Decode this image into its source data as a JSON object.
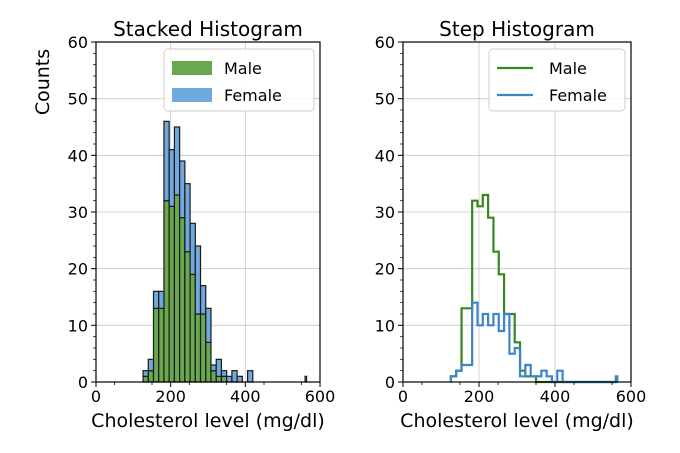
{
  "chart_data": [
    {
      "type": "bar",
      "stacked": true,
      "title": "Stacked Histogram",
      "xlabel": "Cholesterol level (mg/dl)",
      "ylabel": "Counts",
      "xlim": [
        0,
        600
      ],
      "ylim": [
        0,
        60
      ],
      "xticks": [
        0,
        200,
        400,
        600
      ],
      "yticks": [
        0,
        10,
        20,
        30,
        40,
        50,
        60
      ],
      "grid": true,
      "legend_position": "top-right",
      "bin_edges": [
        126,
        140,
        154,
        168,
        182,
        196,
        210,
        224,
        238,
        252,
        266,
        280,
        294,
        308,
        322,
        336,
        350,
        364,
        378,
        392,
        406,
        420,
        434,
        448,
        462,
        476,
        490,
        504,
        518,
        532,
        546,
        560,
        564
      ],
      "series": [
        {
          "name": "Male",
          "color": "#6aa84f",
          "values": [
            1,
            2,
            13,
            13,
            32,
            31,
            33,
            29,
            23,
            19,
            12,
            12,
            7,
            2,
            1,
            1,
            0,
            0,
            0,
            0,
            0,
            0,
            0,
            0,
            0,
            0,
            0,
            0,
            0,
            0,
            0,
            0
          ]
        },
        {
          "name": "Female",
          "color": "#6fa8dc",
          "values": [
            1,
            2,
            3,
            3,
            14,
            10,
            12,
            10,
            12,
            9,
            12,
            5,
            6,
            1,
            3,
            1,
            1,
            2,
            1,
            0,
            2,
            0,
            0,
            0,
            0,
            0,
            0,
            0,
            0,
            0,
            0,
            1
          ]
        }
      ]
    },
    {
      "type": "line",
      "step": true,
      "title": "Step Histogram",
      "xlabel": "Cholesterol level (mg/dl)",
      "ylabel": "",
      "xlim": [
        0,
        600
      ],
      "ylim": [
        0,
        60
      ],
      "xticks": [
        0,
        200,
        400,
        600
      ],
      "yticks": [
        0,
        10,
        20,
        30,
        40,
        50,
        60
      ],
      "grid": true,
      "legend_position": "top-right",
      "bin_edges": [
        126,
        140,
        154,
        168,
        182,
        196,
        210,
        224,
        238,
        252,
        266,
        280,
        294,
        308,
        322,
        336,
        350,
        364,
        378,
        392,
        406,
        420,
        434,
        448,
        462,
        476,
        490,
        504,
        518,
        532,
        546,
        560,
        564
      ],
      "series": [
        {
          "name": "Male",
          "color": "#38861f",
          "values": [
            1,
            2,
            13,
            13,
            32,
            31,
            33,
            29,
            23,
            19,
            12,
            12,
            7,
            2,
            1,
            1,
            0,
            0,
            0,
            0,
            0,
            0,
            0,
            0,
            0,
            0,
            0,
            0,
            0,
            0,
            0,
            0
          ]
        },
        {
          "name": "Female",
          "color": "#3d85c6",
          "values": [
            1,
            2,
            3,
            3,
            14,
            10,
            12,
            10,
            12,
            9,
            12,
            5,
            6,
            1,
            3,
            1,
            1,
            2,
            1,
            0,
            2,
            0,
            0,
            0,
            0,
            0,
            0,
            0,
            0,
            0,
            0,
            1
          ]
        }
      ]
    }
  ]
}
